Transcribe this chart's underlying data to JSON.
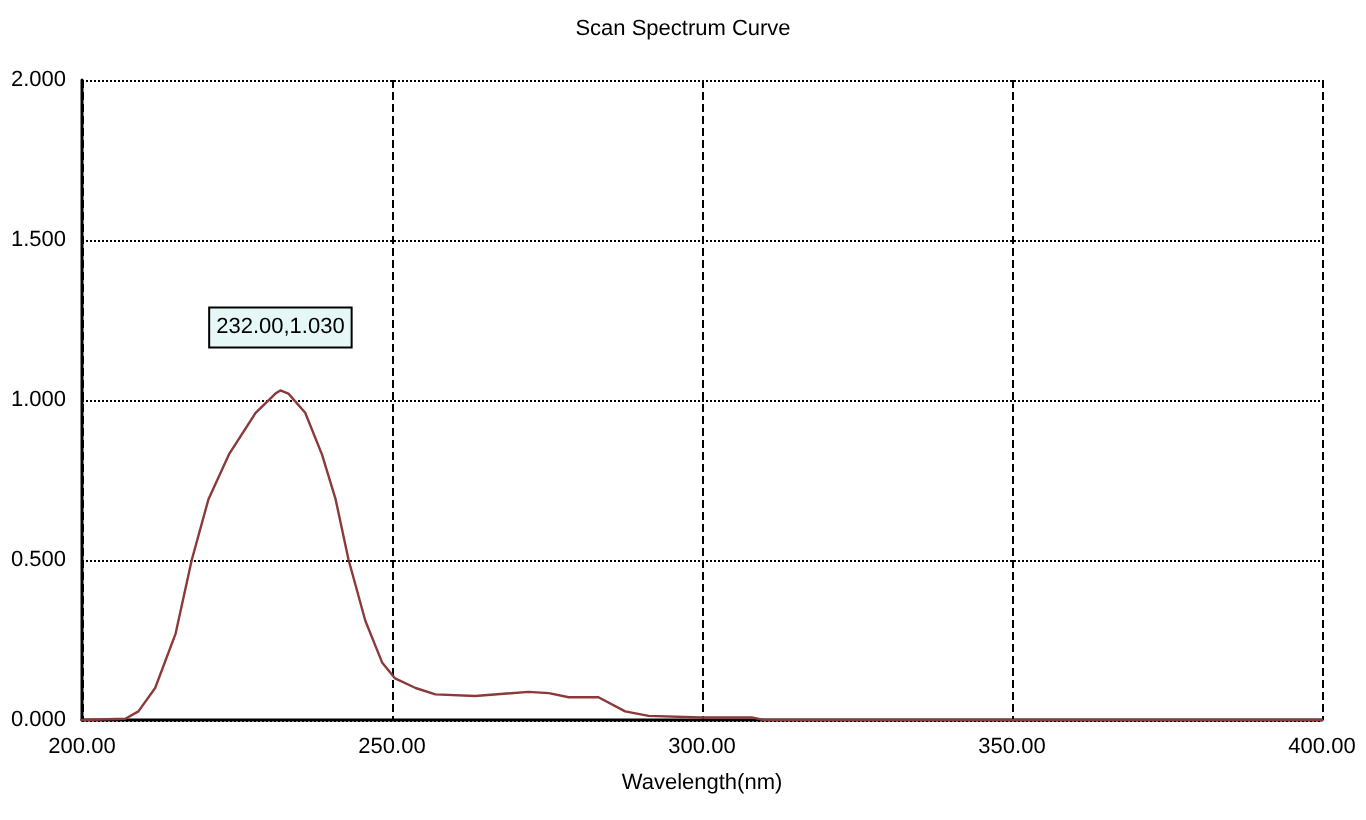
{
  "chart_data": {
    "type": "line",
    "title": "Scan Spectrum Curve",
    "xlabel": "Wavelength(nm)",
    "x": [
      200,
      207,
      209.1,
      211.8,
      215.1,
      217.7,
      220.4,
      223.7,
      228,
      231.2,
      232,
      233.3,
      236,
      238.7,
      240.9,
      243,
      245.7,
      248.4,
      250.5,
      253.8,
      257,
      263.4,
      272,
      275.3,
      278.5,
      283.3,
      287.6,
      291.4,
      300,
      308,
      310,
      400
    ],
    "series": [
      {
        "color": "#8b3a3a",
        "values": [
          0,
          0.004,
          0.027,
          0.1,
          0.27,
          0.5,
          0.69,
          0.83,
          0.96,
          1.02,
          1.03,
          1.02,
          0.96,
          0.83,
          0.69,
          0.5,
          0.31,
          0.18,
          0.13,
          0.1,
          0.08,
          0.075,
          0.088,
          0.084,
          0.071,
          0.071,
          0.027,
          0.013,
          0.008,
          0.008,
          0,
          0
        ]
      }
    ],
    "xlim": [
      200,
      400
    ],
    "xticks": [
      {
        "value": 200,
        "label": "200.00"
      },
      {
        "value": 250,
        "label": "250.00"
      },
      {
        "value": 300,
        "label": "300.00"
      },
      {
        "value": 350,
        "label": "350.00"
      },
      {
        "value": 400,
        "label": "400.00"
      }
    ],
    "ylim": [
      0,
      2
    ],
    "yticks": [
      {
        "value": 0,
        "label": "0.000"
      },
      {
        "value": 0.5,
        "label": "0.500"
      },
      {
        "value": 1,
        "label": "1.000"
      },
      {
        "value": 1.5,
        "label": "1.500"
      },
      {
        "value": 2,
        "label": "2.000"
      }
    ],
    "annotations": [
      {
        "text": "232.00,1.030",
        "x": 232,
        "y": 1.03
      }
    ],
    "grid": true,
    "marker": "none",
    "line_style": "solid"
  }
}
